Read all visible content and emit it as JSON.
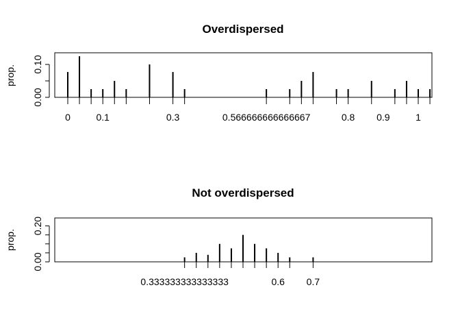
{
  "chart_data": [
    {
      "type": "bar",
      "title": "Overdispersed",
      "xlabel": "",
      "ylabel": "prop.",
      "xlim": [
        0,
        1.0667
      ],
      "ylim": [
        0,
        0.1333
      ],
      "y_ticks": [
        0.0,
        0.05,
        0.1
      ],
      "y_tick_labels": [
        "0.00",
        "",
        "0.10"
      ],
      "x": [
        0,
        0.0333,
        0.0667,
        0.1,
        0.1333,
        0.1667,
        0.2333,
        0.3,
        0.3333,
        0.5667,
        0.6333,
        0.6667,
        0.7,
        0.7667,
        0.8,
        0.8667,
        0.9333,
        0.9667,
        1,
        1.0333
      ],
      "values": [
        0.077,
        0.125,
        0.025,
        0.025,
        0.05,
        0.025,
        0.1,
        0.077,
        0.025,
        0.025,
        0.025,
        0.05,
        0.077,
        0.025,
        0.025,
        0.05,
        0.025,
        0.05,
        0.025,
        0.025
      ],
      "x_tick_labels": [
        "0",
        "0.1",
        "0.3",
        "0.566666666666667",
        "0.8",
        "0.9",
        "1"
      ],
      "grid": false
    },
    {
      "type": "bar",
      "title": "Not overdispersed",
      "xlabel": "",
      "ylabel": "prop.",
      "xlim": [
        0,
        1.0667
      ],
      "ylim": [
        0,
        0.24
      ],
      "y_ticks": [
        0.0,
        0.05,
        0.1,
        0.15,
        0.2
      ],
      "y_tick_labels": [
        "0.00",
        "",
        "",
        "",
        "0.20"
      ],
      "x": [
        0.3333,
        0.3667,
        0.4,
        0.4333,
        0.4667,
        0.5,
        0.5333,
        0.5667,
        0.6,
        0.6333,
        0.7
      ],
      "values": [
        0.025,
        0.05,
        0.039,
        0.1,
        0.075,
        0.15,
        0.1,
        0.075,
        0.05,
        0.025,
        0.025
      ],
      "x_tick_labels": [
        "0.333333333333333",
        "0.6",
        "0.7"
      ],
      "grid": false
    }
  ]
}
